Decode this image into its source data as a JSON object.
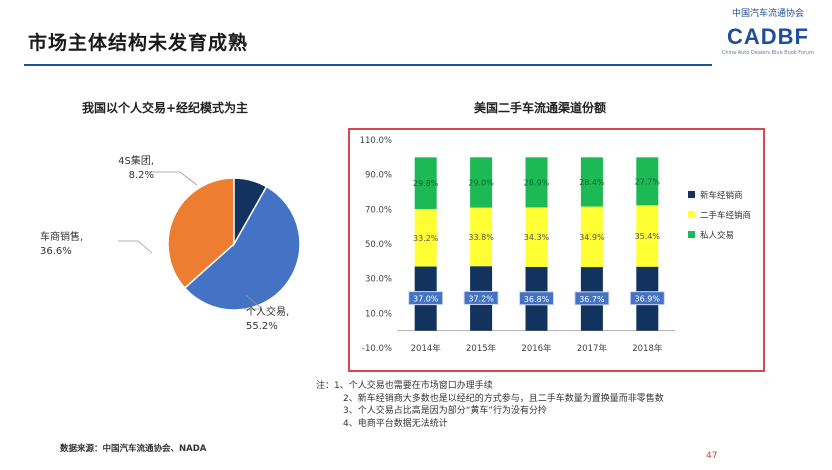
{
  "slide": {
    "title": "市场主体结构未发育成熟",
    "page_number": "47",
    "source": "数据来源：中国汽车流通协会、NADA",
    "notes": [
      "注：1、个人交易也需要在市场窗口办理手续",
      "2、新车经销商大多数也是以经纪的方式参与，且二手车数量为置换量而非零售数",
      "3、个人交易占比高是因为部分“黄车”行为没有分拎",
      "4、电商平台数据无法统计"
    ]
  },
  "logo": {
    "org_cn": "中国汽车流通协会",
    "mark": "CADBF",
    "org_en": "China Auto Dealers Blue Book Forum"
  },
  "colors": {
    "title_rule": "#1f4e9a",
    "frame": "#d9474f",
    "pie_individual": "#4472c4",
    "pie_dealer": "#ed7d31",
    "pie_4s": "#13335f",
    "bar_new": "#13335f",
    "bar_used": "#ffff33",
    "bar_private": "#1db954"
  },
  "chart_data": [
    {
      "type": "pie",
      "title": "我国以个人交易+经纪模式为主",
      "slices": [
        {
          "label": "个人交易,",
          "pct_text": "55.2%",
          "value": 55.2,
          "color": "#4472c4"
        },
        {
          "label": "车商销售,",
          "pct_text": "36.6%",
          "value": 36.6,
          "color": "#ed7d31"
        },
        {
          "label": "4S集团,",
          "pct_text": "8.2%",
          "value": 8.2,
          "color": "#13335f"
        }
      ]
    },
    {
      "type": "bar",
      "stacked": true,
      "title": "美国二手车流通渠道份额",
      "categories": [
        "2014年",
        "2015年",
        "2016年",
        "2017年",
        "2018年"
      ],
      "ylim": [
        -10,
        110
      ],
      "yticks": [
        "-10.0%",
        "10.0%",
        "30.0%",
        "50.0%",
        "70.0%",
        "90.0%",
        "110.0%"
      ],
      "ytick_values": [
        -10,
        10,
        30,
        50,
        70,
        90,
        110
      ],
      "legend_position": "right",
      "series": [
        {
          "name": "新车经销商",
          "values": [
            37.0,
            37.2,
            36.8,
            36.7,
            36.9
          ],
          "labels": [
            "37.0%",
            "37.2%",
            "36.8%",
            "36.7%",
            "36.9%"
          ],
          "color": "#13335f"
        },
        {
          "name": "二手车经销商",
          "values": [
            33.2,
            33.8,
            34.3,
            34.9,
            35.4
          ],
          "labels": [
            "33.2%",
            "33.8%",
            "34.3%",
            "34.9%",
            "35.4%"
          ],
          "color": "#ffff33"
        },
        {
          "name": "私人交易",
          "values": [
            29.8,
            29.0,
            28.9,
            28.4,
            27.7
          ],
          "labels": [
            "29.8%",
            "29.0%",
            "28.9%",
            "28.4%",
            "27.7%"
          ],
          "color": "#1db954"
        }
      ]
    }
  ]
}
